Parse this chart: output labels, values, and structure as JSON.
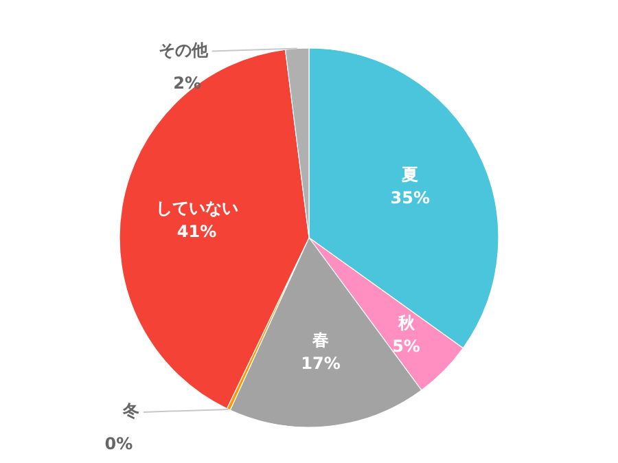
{
  "chart_data": {
    "type": "pie",
    "categories": [
      "夏",
      "秋",
      "春",
      "冬",
      "していない",
      "その他"
    ],
    "values": [
      35,
      5,
      17,
      0.3,
      41,
      2
    ],
    "colors": [
      "#4ac5dc",
      "#ff8fc0",
      "#a3a3a3",
      "#ff9800",
      "#f44336",
      "#b0b0b0"
    ],
    "value_labels": [
      "35%",
      "5%",
      "17%",
      "0%",
      "41%",
      "2%"
    ]
  }
}
